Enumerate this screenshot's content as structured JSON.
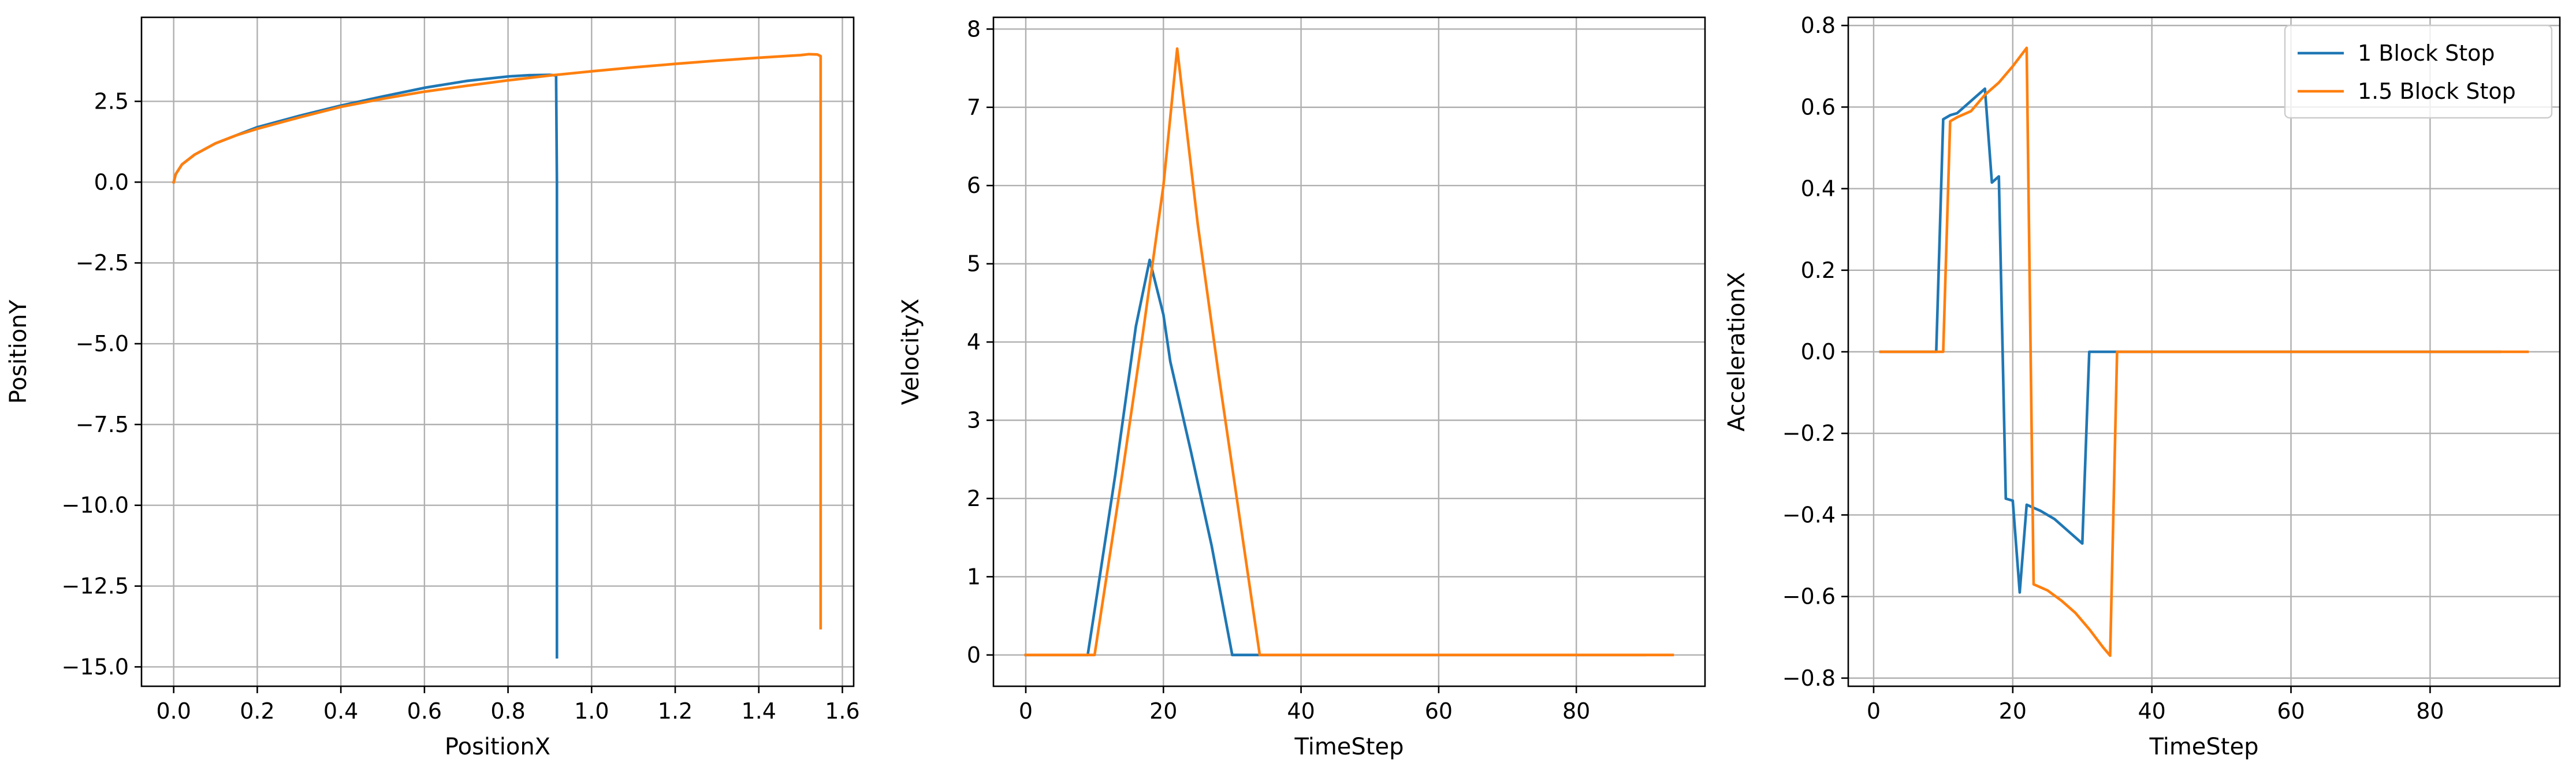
{
  "chart_data": [
    {
      "type": "line",
      "xlabel": "PositionX",
      "ylabel": "PositionY",
      "xlim": [
        -0.077,
        1.627
      ],
      "ylim": [
        -15.6,
        5.1
      ],
      "xticks": [
        0.0,
        0.2,
        0.4,
        0.6,
        0.8,
        1.0,
        1.2,
        1.4,
        1.6
      ],
      "xtick_labels": [
        "0.0",
        "0.2",
        "0.4",
        "0.6",
        "0.8",
        "1.0",
        "1.2",
        "1.4",
        "1.6"
      ],
      "yticks": [
        2.5,
        0.0,
        -2.5,
        -5.0,
        -7.5,
        -10.0,
        -12.5,
        -15.0
      ],
      "ytick_labels": [
        "2.5",
        "0.0",
        "−2.5",
        "−5.0",
        "−7.5",
        "−10.0",
        "−12.5",
        "−15.0"
      ],
      "grid": true,
      "series": [
        {
          "color": "#1f77b4",
          "x": [
            0.0,
            0.005,
            0.02,
            0.05,
            0.1,
            0.15,
            0.2,
            0.3,
            0.4,
            0.5,
            0.6,
            0.7,
            0.8,
            0.85,
            0.9,
            0.915,
            0.917,
            0.917
          ],
          "y": [
            0.0,
            0.25,
            0.55,
            0.85,
            1.2,
            1.45,
            1.7,
            2.05,
            2.37,
            2.65,
            2.92,
            3.13,
            3.27,
            3.31,
            3.32,
            3.3,
            0.0,
            -14.7
          ]
        },
        {
          "color": "#ff7f0e",
          "x": [
            0.0,
            0.005,
            0.02,
            0.05,
            0.1,
            0.15,
            0.2,
            0.3,
            0.4,
            0.5,
            0.6,
            0.7,
            0.8,
            0.9,
            1.0,
            1.1,
            1.2,
            1.3,
            1.4,
            1.5,
            1.52,
            1.54,
            1.548,
            1.548
          ],
          "y": [
            0.0,
            0.25,
            0.55,
            0.85,
            1.2,
            1.45,
            1.65,
            2.0,
            2.33,
            2.58,
            2.8,
            2.98,
            3.15,
            3.3,
            3.43,
            3.55,
            3.66,
            3.76,
            3.85,
            3.93,
            3.96,
            3.95,
            3.9,
            -13.8
          ]
        }
      ]
    },
    {
      "type": "line",
      "xlabel": "TimeStep",
      "ylabel": "VelocityX",
      "xlim": [
        -4.7,
        98.7
      ],
      "ylim": [
        -0.4,
        8.15
      ],
      "xticks": [
        0,
        20,
        40,
        60,
        80
      ],
      "xtick_labels": [
        "0",
        "20",
        "40",
        "60",
        "80"
      ],
      "yticks": [
        0,
        1,
        2,
        3,
        4,
        5,
        6,
        7,
        8
      ],
      "ytick_labels": [
        "0",
        "1",
        "2",
        "3",
        "4",
        "5",
        "6",
        "7",
        "8"
      ],
      "grid": true,
      "series": [
        {
          "color": "#1f77b4",
          "x": [
            0,
            9,
            10,
            13,
            16,
            18,
            20,
            21,
            24,
            27,
            30,
            32,
            34,
            90
          ],
          "y": [
            0,
            0,
            0.57,
            2.3,
            4.2,
            5.05,
            4.35,
            3.75,
            2.6,
            1.4,
            0.0,
            0.0,
            0.0,
            0.0
          ]
        },
        {
          "color": "#ff7f0e",
          "x": [
            0,
            10,
            11,
            14,
            17,
            20,
            22,
            25,
            28,
            31,
            34,
            94
          ],
          "y": [
            0,
            0,
            0.58,
            2.3,
            4.1,
            6.0,
            7.75,
            5.5,
            3.6,
            1.8,
            0.0,
            0.0
          ]
        }
      ]
    },
    {
      "type": "line",
      "xlabel": "TimeStep",
      "ylabel": "AccelerationX",
      "xlim": [
        -3.65,
        98.65
      ],
      "ylim": [
        -0.82,
        0.82
      ],
      "xticks": [
        0,
        20,
        40,
        60,
        80
      ],
      "xtick_labels": [
        "0",
        "20",
        "40",
        "60",
        "80"
      ],
      "yticks": [
        0.8,
        0.6,
        0.4,
        0.2,
        0.0,
        -0.2,
        -0.4,
        -0.6,
        -0.8
      ],
      "ytick_labels": [
        "0.8",
        "0.6",
        "0.4",
        "0.2",
        "0.0",
        "−0.2",
        "−0.4",
        "−0.6",
        "−0.8"
      ],
      "grid": true,
      "legend_position": "top-right",
      "series": [
        {
          "name": "1 Block Stop",
          "color": "#1f77b4",
          "x": [
            1,
            9,
            10,
            11,
            12,
            13,
            14,
            15,
            16,
            17,
            18,
            19,
            20,
            21,
            22,
            24,
            26,
            28,
            30,
            31,
            32,
            34,
            40,
            90
          ],
          "y": [
            0.0,
            0.0,
            0.57,
            0.58,
            0.585,
            0.6,
            0.615,
            0.63,
            0.645,
            0.415,
            0.43,
            -0.36,
            -0.365,
            -0.59,
            -0.375,
            -0.39,
            -0.41,
            -0.44,
            -0.47,
            0.0,
            0.0,
            0.0,
            0.0,
            0.0
          ]
        },
        {
          "name": "1.5 Block Stop",
          "color": "#ff7f0e",
          "x": [
            1,
            10,
            11,
            12,
            14,
            16,
            18,
            20,
            22,
            23,
            25,
            27,
            29,
            31,
            33,
            34,
            35,
            40,
            94
          ],
          "y": [
            0.0,
            0.0,
            0.565,
            0.575,
            0.59,
            0.63,
            0.66,
            0.7,
            0.745,
            -0.57,
            -0.585,
            -0.61,
            -0.64,
            -0.68,
            -0.725,
            -0.745,
            0.0,
            0.0,
            0.0
          ]
        }
      ]
    }
  ]
}
